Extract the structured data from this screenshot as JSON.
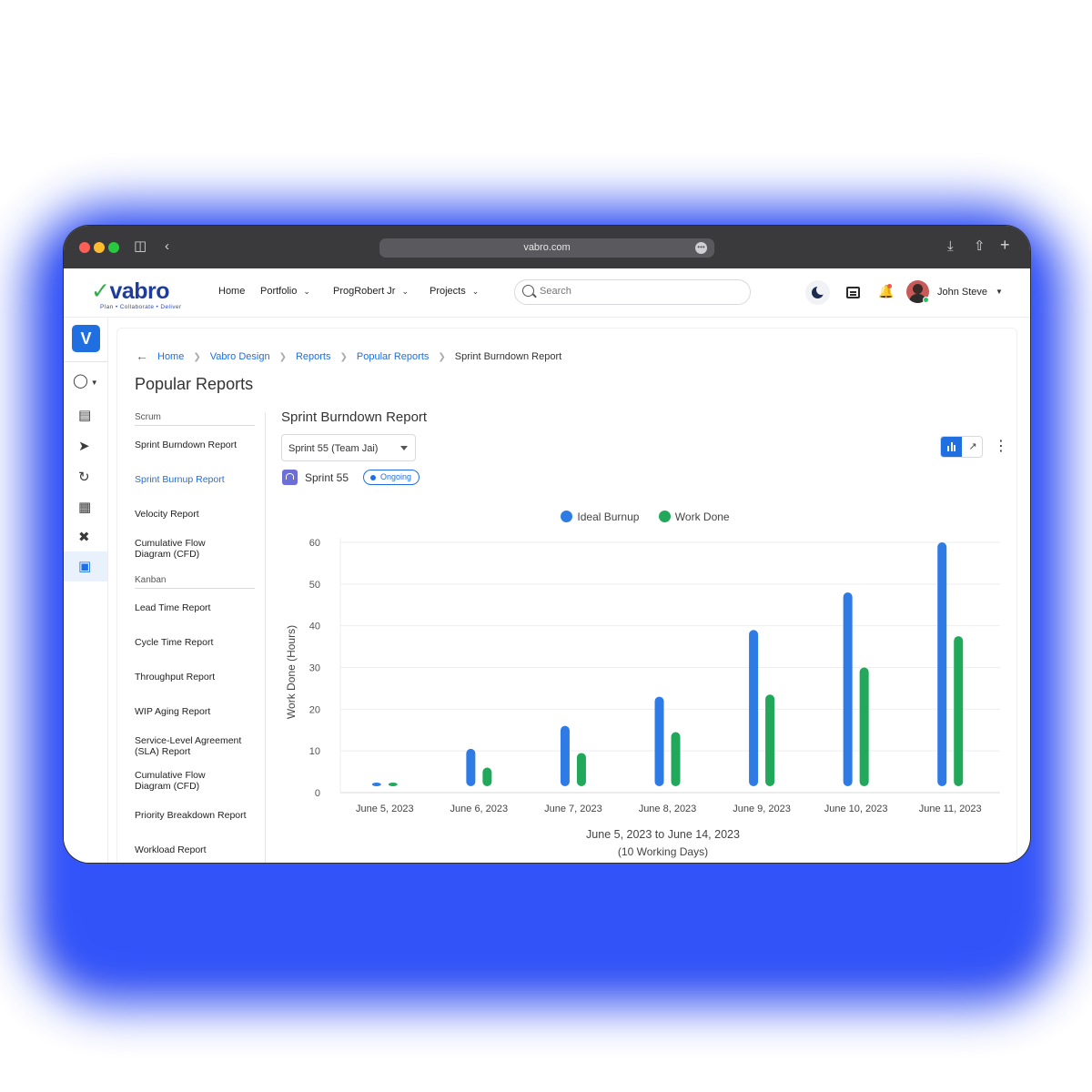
{
  "browser": {
    "url": "vabro.com"
  },
  "logo": {
    "word": "vabro",
    "tagline": "Plan • Collaborate • Deliver"
  },
  "nav": {
    "home": "Home",
    "portfolio": "Portfolio",
    "workspace": "ProgRobert Jr",
    "projects": "Projects"
  },
  "search": {
    "placeholder": "Search"
  },
  "user": {
    "name": "John Steve"
  },
  "rail": {
    "brand": "V"
  },
  "breadcrumb": [
    "Home",
    "Vabro Design",
    "Reports",
    "Popular Reports",
    "Sprint Burndown Report"
  ],
  "page_title": "Popular Reports",
  "sidebar": {
    "scrum_heading": "Scrum",
    "scrum_items": [
      "Sprint Burndown Report",
      "Sprint Burnup Report",
      "Velocity Report",
      "Cumulative Flow Diagram (CFD)"
    ],
    "kanban_heading": "Kanban",
    "kanban_items": [
      "Lead Time Report",
      "Cycle Time Report",
      "Throughput Report",
      "WIP Aging Report",
      "Service-Level Agreement (SLA) Report",
      "Cumulative Flow Diagram (CFD)",
      "Priority Breakdown Report",
      "Workload Report"
    ]
  },
  "report": {
    "title": "Sprint Burndown Report",
    "sprint_select": "Sprint 55 (Team Jai)",
    "sprint_name": "Sprint 55",
    "status": "Ongoing"
  },
  "colors": {
    "accent": "#1f6fe0",
    "ideal": "#2f7be6",
    "done": "#22a85a"
  },
  "chart_data": {
    "type": "bar",
    "categories": [
      "June 5, 2023",
      "June 6, 2023",
      "June 7, 2023",
      "June 8, 2023",
      "June 9, 2023",
      "June 10, 2023",
      "June 11, 2023"
    ],
    "series": [
      {
        "name": "Ideal Burnup",
        "values": [
          0.5,
          10.5,
          16,
          23,
          39,
          48,
          60
        ]
      },
      {
        "name": "Work Done",
        "values": [
          1,
          6,
          9.5,
          14.5,
          23.5,
          30,
          37.5
        ]
      }
    ],
    "ylabel": "Work Done (Hours)",
    "xlabel": "June 5, 2023 to June 14, 2023",
    "xlabel_sub": "(10 Working Days)",
    "yticks": [
      0,
      10,
      20,
      30,
      40,
      50,
      60
    ],
    "ylim": [
      0,
      60
    ],
    "grid": true,
    "legend": "top-center"
  }
}
